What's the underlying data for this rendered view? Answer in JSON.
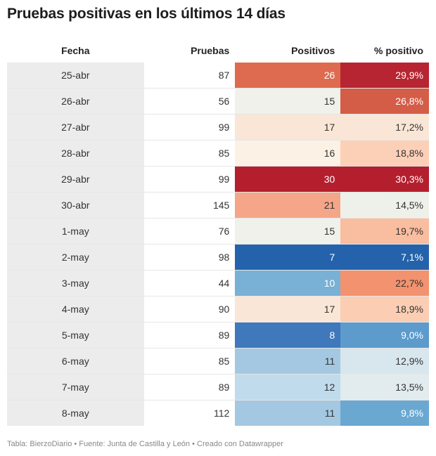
{
  "title": "Pruebas positivas en los últimos 14 días",
  "footer": "Tabla: BierzoDiario • Fuente: Junta de Castilla y León • Creado con Datawrapper",
  "chart_data": {
    "type": "table",
    "columns": [
      "Fecha",
      "Pruebas",
      "Positivos",
      "% positivo"
    ],
    "rows": [
      {
        "fecha": "25-abr",
        "pruebas": "87",
        "positivos": "26",
        "pct": "29,9%",
        "pos_color": "#de6b4f",
        "pct_color": "#b62531"
      },
      {
        "fecha": "26-abr",
        "pruebas": "56",
        "positivos": "15",
        "pct": "26,8%",
        "pos_color": "#f0f1ea",
        "pct_color": "#d45d48"
      },
      {
        "fecha": "27-abr",
        "pruebas": "99",
        "positivos": "17",
        "pct": "17,2%",
        "pos_color": "#fae6d6",
        "pct_color": "#fae6d6"
      },
      {
        "fecha": "28-abr",
        "pruebas": "85",
        "positivos": "16",
        "pct": "18,8%",
        "pos_color": "#fbf1e4",
        "pct_color": "#fcd0b7"
      },
      {
        "fecha": "29-abr",
        "pruebas": "99",
        "positivos": "30",
        "pct": "30,3%",
        "pos_color": "#b41f2e",
        "pct_color": "#b41f2e"
      },
      {
        "fecha": "30-abr",
        "pruebas": "145",
        "positivos": "21",
        "pct": "14,5%",
        "pos_color": "#f5a688",
        "pct_color": "#eef1ea"
      },
      {
        "fecha": "1-may",
        "pruebas": "76",
        "positivos": "15",
        "pct": "19,7%",
        "pos_color": "#f0f1ea",
        "pct_color": "#f9bda0"
      },
      {
        "fecha": "2-may",
        "pruebas": "98",
        "positivos": "7",
        "pct": "7,1%",
        "pos_color": "#2463ab",
        "pct_color": "#2463ab"
      },
      {
        "fecha": "3-may",
        "pruebas": "44",
        "positivos": "10",
        "pct": "22,7%",
        "pos_color": "#79b0d5",
        "pct_color": "#f2926f"
      },
      {
        "fecha": "4-may",
        "pruebas": "90",
        "positivos": "17",
        "pct": "18,9%",
        "pos_color": "#fae6d6",
        "pct_color": "#fbcdb3"
      },
      {
        "fecha": "5-may",
        "pruebas": "89",
        "positivos": "8",
        "pct": "9,0%",
        "pos_color": "#3f78bb",
        "pct_color": "#5c9bcb"
      },
      {
        "fecha": "6-may",
        "pruebas": "85",
        "positivos": "11",
        "pct": "12,9%",
        "pos_color": "#a4c8e1",
        "pct_color": "#d8e6ee"
      },
      {
        "fecha": "7-may",
        "pruebas": "89",
        "positivos": "12",
        "pct": "13,5%",
        "pos_color": "#c0dbec",
        "pct_color": "#e2ebee"
      },
      {
        "fecha": "8-may",
        "pruebas": "112",
        "positivos": "11",
        "pct": "9,8%",
        "pos_color": "#a4c8e1",
        "pct_color": "#6aa8d1"
      }
    ]
  }
}
